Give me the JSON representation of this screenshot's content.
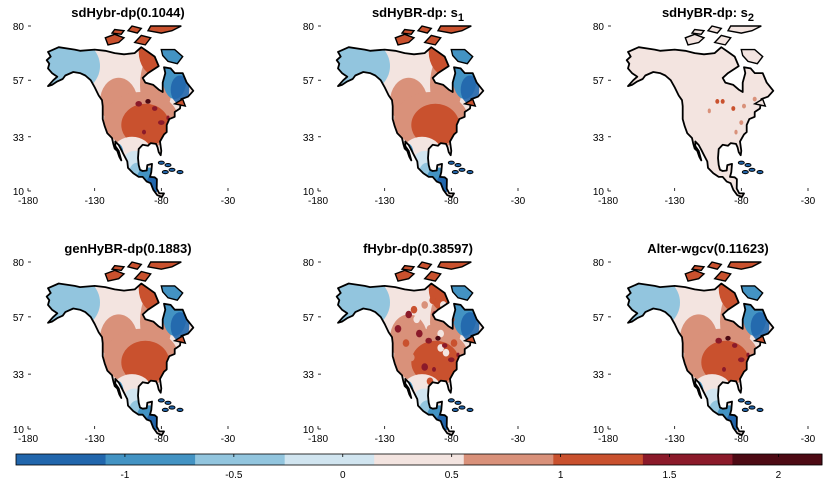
{
  "figure": {
    "colorbar": {
      "colors": [
        "#2166ac",
        "#4393c3",
        "#92c5de",
        "#d1e5f0",
        "#f3e4e0",
        "#d9917a",
        "#c9512e",
        "#8b1a2a",
        "#4d0a14"
      ],
      "ticks": [
        -1,
        -0.5,
        0,
        0.5,
        1,
        1.5,
        2
      ],
      "tick_labels": [
        "-1",
        "-0.5",
        "0",
        "0.5",
        "1",
        "1.5",
        "2"
      ],
      "range": [
        -1.5,
        2.2
      ]
    },
    "color_scheme": {
      "ocean": "#ffffff",
      "outline": "#000000",
      "low": "#2166ac",
      "mid": "#f3e4e0",
      "high": "#c9512e",
      "extreme": "#4d0a14"
    }
  },
  "chart_data": [
    {
      "type": "heatmap",
      "title": "sdHybr-dp(0.1044)",
      "variant": "full",
      "xticks": [
        -180,
        -130,
        -80,
        -30
      ],
      "xtick_labels": [
        "-180",
        "-130",
        "-80",
        "-30"
      ],
      "yticks": [
        10,
        33,
        57,
        80
      ],
      "ytick_labels": [
        "10",
        "33",
        "57",
        "80"
      ],
      "xlim": [
        -180,
        -30
      ],
      "ylim": [
        10,
        80
      ]
    },
    {
      "type": "heatmap",
      "title_main": "sdHyBR-dp:  s",
      "title_sub": "1",
      "variant": "smooth",
      "xticks": [
        -180,
        -130,
        -80,
        -30
      ],
      "xtick_labels": [
        "-180",
        "-130",
        "-80",
        "-30"
      ],
      "yticks": [
        10,
        33,
        57,
        80
      ],
      "ytick_labels": [
        "10",
        "33",
        "57",
        "80"
      ],
      "xlim": [
        -180,
        -30
      ],
      "ylim": [
        10,
        80
      ]
    },
    {
      "type": "heatmap",
      "title_main": "sdHyBR-dp:  s",
      "title_sub": "2",
      "variant": "sparse",
      "xticks": [
        -180,
        -130,
        -80,
        -30
      ],
      "xtick_labels": [
        "-180",
        "-130",
        "-80",
        "-30"
      ],
      "yticks": [
        10,
        33,
        57,
        80
      ],
      "ytick_labels": [
        "10",
        "33",
        "57",
        "80"
      ],
      "xlim": [
        -180,
        -30
      ],
      "ylim": [
        10,
        80
      ]
    },
    {
      "type": "heatmap",
      "title": "genHyBR-dp(0.1883)",
      "variant": "smooth",
      "xticks": [
        -180,
        -130,
        -80,
        -30
      ],
      "xtick_labels": [
        "-180",
        "-130",
        "-80",
        "-30"
      ],
      "yticks": [
        10,
        33,
        57,
        80
      ],
      "ytick_labels": [
        "10",
        "33",
        "57",
        "80"
      ],
      "xlim": [
        -180,
        -30
      ],
      "ylim": [
        10,
        80
      ]
    },
    {
      "type": "heatmap",
      "title": "fHybr-dp(0.38597)",
      "variant": "noisy",
      "xticks": [
        -180,
        -130,
        -80,
        -30
      ],
      "xtick_labels": [
        "-180",
        "-130",
        "-80",
        "-30"
      ],
      "yticks": [
        10,
        33,
        57,
        80
      ],
      "ytick_labels": [
        "10",
        "33",
        "57",
        "80"
      ],
      "xlim": [
        -180,
        -30
      ],
      "ylim": [
        10,
        80
      ]
    },
    {
      "type": "heatmap",
      "title": "Alter-wgcv(0.11623)",
      "variant": "full",
      "xticks": [
        -180,
        -130,
        -80,
        -30
      ],
      "xtick_labels": [
        "-180",
        "-130",
        "-80",
        "-30"
      ],
      "yticks": [
        10,
        33,
        57,
        80
      ],
      "ytick_labels": [
        "10",
        "33",
        "57",
        "80"
      ],
      "xlim": [
        -180,
        -30
      ],
      "ylim": [
        10,
        80
      ]
    }
  ]
}
